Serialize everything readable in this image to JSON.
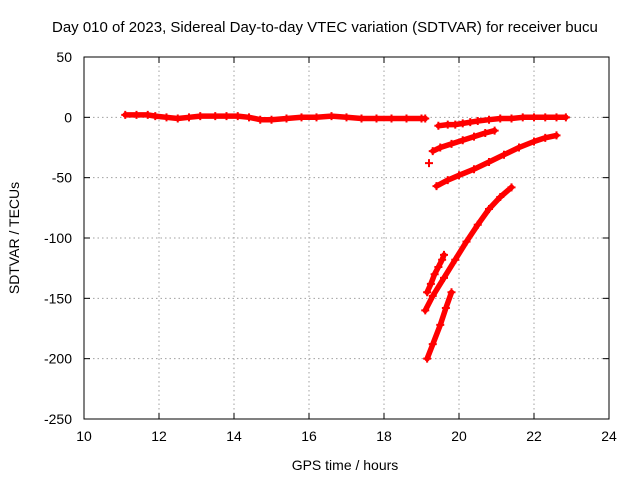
{
  "chart_data": {
    "type": "scatter",
    "title": "Day 010 of 2023, Sidereal Day-to-day VTEC variation (SDTVAR) for receiver bucu",
    "xlabel": "GPS time / hours",
    "ylabel": "SDTVAR / TECUs",
    "xlim": [
      10,
      24
    ],
    "ylim": [
      -250,
      50
    ],
    "xticks": [
      10,
      12,
      14,
      16,
      18,
      20,
      22,
      24
    ],
    "yticks": [
      -250,
      -200,
      -150,
      -100,
      -50,
      0,
      50
    ],
    "grid": true,
    "marker": "plus",
    "color": "#ff0000",
    "series": [
      {
        "x": [
          11.1,
          11.4,
          11.7,
          11.9,
          12.2,
          12.5,
          12.8,
          13.1,
          13.5,
          13.8,
          14.1,
          14.4,
          14.7,
          15.0,
          15.4,
          15.8,
          16.2,
          16.6,
          17.0,
          17.4,
          17.8,
          18.2,
          18.6,
          19.0,
          19.1
        ],
        "y": [
          2,
          2,
          2,
          1,
          0,
          -1,
          0,
          1,
          1,
          1,
          1,
          0,
          -2,
          -2,
          -1,
          0,
          0,
          1,
          0,
          -1,
          -1,
          -1,
          -1,
          -1,
          -1
        ]
      },
      {
        "x": [
          19.45,
          19.7,
          19.9,
          20.1,
          20.3,
          20.5,
          20.8,
          21.1,
          21.4,
          21.7,
          22.0,
          22.3,
          22.6,
          22.85
        ],
        "y": [
          -7,
          -6,
          -6,
          -5,
          -4,
          -3,
          -2,
          -1,
          -1,
          0,
          0,
          0,
          0,
          0
        ]
      },
      {
        "x": [
          19.2
        ],
        "y": [
          -38
        ]
      },
      {
        "x": [
          19.3,
          19.5,
          19.8,
          20.1,
          20.4,
          20.7,
          20.95
        ],
        "y": [
          -28,
          -25,
          -22,
          -19,
          -16,
          -13,
          -11
        ]
      },
      {
        "x": [
          19.4,
          19.7,
          20.0,
          20.4,
          20.8,
          21.2,
          21.6,
          22.0,
          22.3,
          22.6
        ],
        "y": [
          -57,
          -52,
          -48,
          -43,
          -37,
          -31,
          -25,
          -20,
          -17,
          -15
        ]
      },
      {
        "x": [
          19.1,
          19.3,
          19.6,
          19.9,
          20.2,
          20.5,
          20.8,
          21.1,
          21.4
        ],
        "y": [
          -160,
          -148,
          -133,
          -118,
          -103,
          -89,
          -76,
          -66,
          -58
        ]
      },
      {
        "x": [
          19.15,
          19.25,
          19.35,
          19.45,
          19.55,
          19.6
        ],
        "y": [
          -145,
          -138,
          -130,
          -124,
          -118,
          -114
        ]
      },
      {
        "x": [
          19.15,
          19.3,
          19.5,
          19.65,
          19.8
        ],
        "y": [
          -200,
          -188,
          -172,
          -158,
          -145
        ]
      }
    ]
  }
}
